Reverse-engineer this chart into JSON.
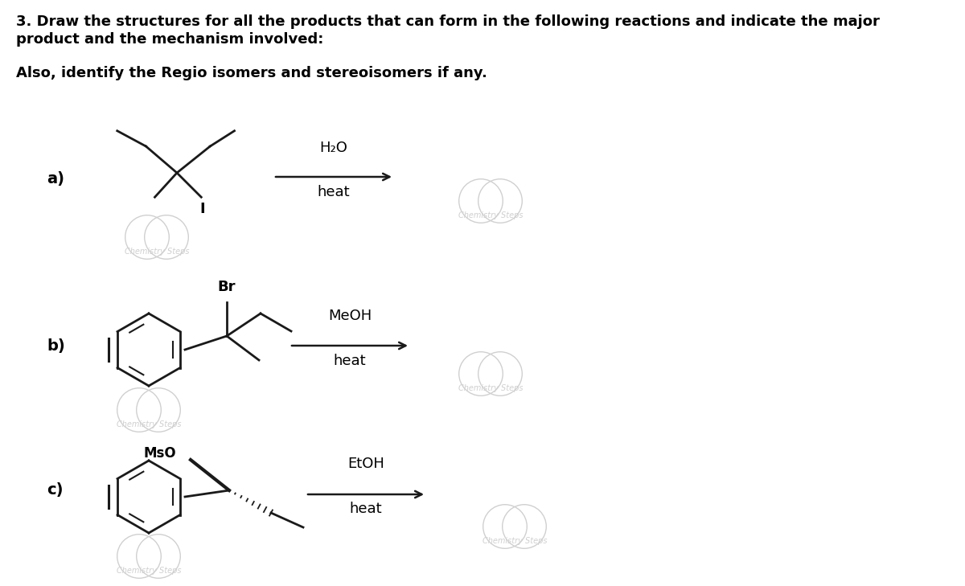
{
  "title_line1": "3. Draw the structures for all the products that can form in the following reactions and indicate the major",
  "title_line2": "product and the mechanism involved:",
  "subtitle": "Also, identify the Regio isomers and stereoisomers if any.",
  "label_a": "a)",
  "label_b": "b)",
  "label_c": "c)",
  "reagent_a_top": "H₂O",
  "reagent_a_bottom": "heat",
  "reagent_b_top": "MeOH",
  "reagent_b_bottom": "heat",
  "reagent_c_top": "EtOH",
  "reagent_c_bottom": "heat",
  "watermark_text": "Chemistry Steps",
  "bg_color": "#ffffff",
  "text_color": "#000000",
  "watermark_color": "#d0d0d0",
  "line_color": "#1a1a1a",
  "arrow_color": "#1a1a1a"
}
